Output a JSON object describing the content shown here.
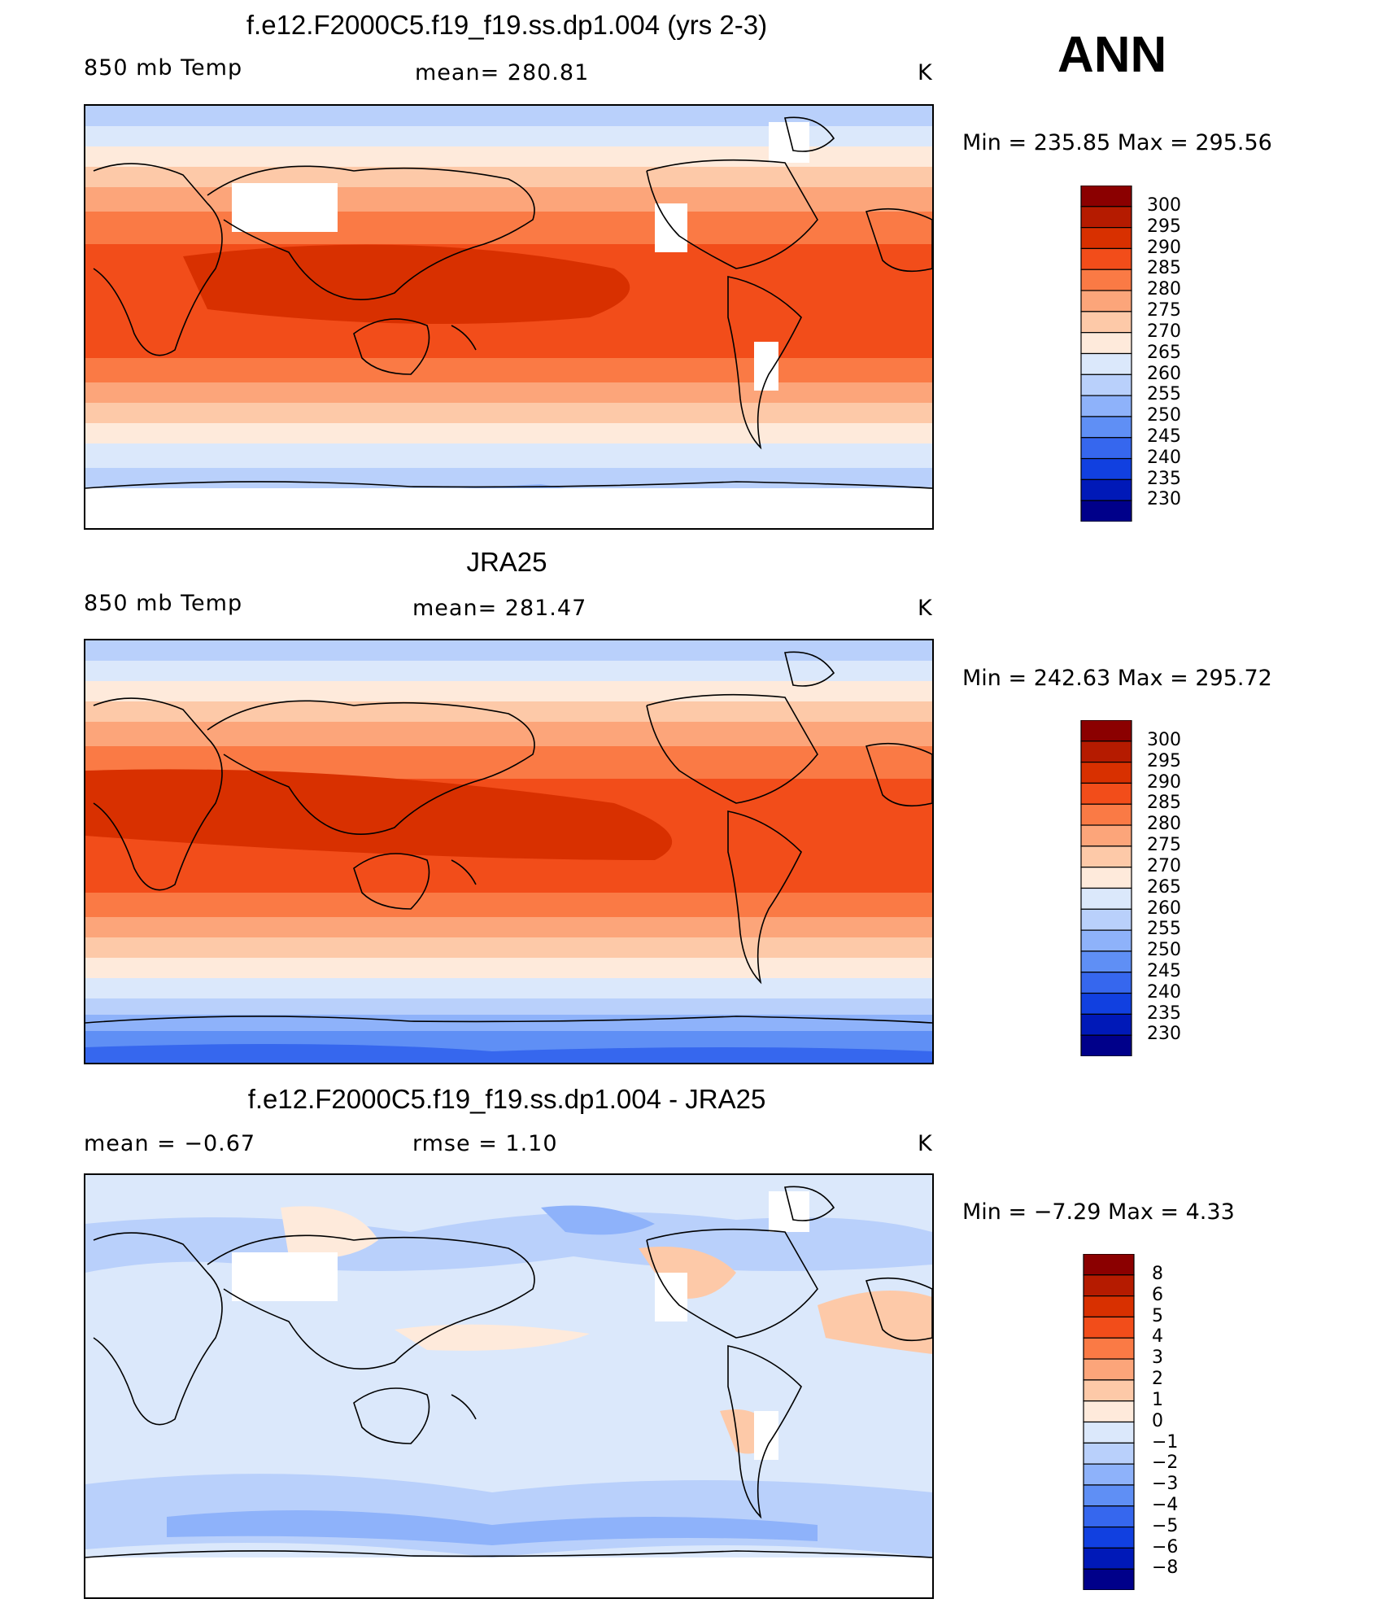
{
  "season": "ANN",
  "panels": [
    {
      "title": "f.e12.F2000C5.f19_f19.ss.dp1.004 (yrs 2-3)",
      "left_label": "850 mb Temp",
      "mid_label": "mean=  280.81",
      "units": "K",
      "minmax": "Min  =  235.85  Max  =  295.56",
      "colorbar_labels": [
        "300",
        "295",
        "290",
        "285",
        "280",
        "275",
        "270",
        "265",
        "260",
        "255",
        "250",
        "245",
        "240",
        "235",
        "230"
      ],
      "field": "model"
    },
    {
      "title": "JRA25",
      "left_label": "850 mb Temp",
      "mid_label": "mean=  281.47",
      "units": "K",
      "minmax": "Min  =  242.63  Max  =  295.72",
      "colorbar_labels": [
        "300",
        "295",
        "290",
        "285",
        "280",
        "275",
        "270",
        "265",
        "260",
        "255",
        "250",
        "245",
        "240",
        "235",
        "230"
      ],
      "field": "obs"
    },
    {
      "title": "f.e12.F2000C5.f19_f19.ss.dp1.004 - JRA25",
      "left_label": "mean  =    −0.67",
      "mid_label": "rmse  =     1.10",
      "units": "K",
      "minmax": "Min  =    −7.29  Max  =     4.33",
      "colorbar_labels": [
        "8",
        "6",
        "5",
        "4",
        "3",
        "2",
        "1",
        "0",
        "−1",
        "−2",
        "−3",
        "−4",
        "−5",
        "−6",
        "−8"
      ],
      "field": "diff"
    }
  ],
  "colors": {
    "levels_top_to_bottom": [
      "#8b0000",
      "#b51b00",
      "#d83000",
      "#f24d1a",
      "#fa7a45",
      "#fca57a",
      "#fdc9a8",
      "#feeadb",
      "#dbe8fb",
      "#b9d0fb",
      "#8eb2fa",
      "#5f8ff5",
      "#3667ee",
      "#1140e0",
      "#0019b8",
      "#00008a"
    ]
  }
}
